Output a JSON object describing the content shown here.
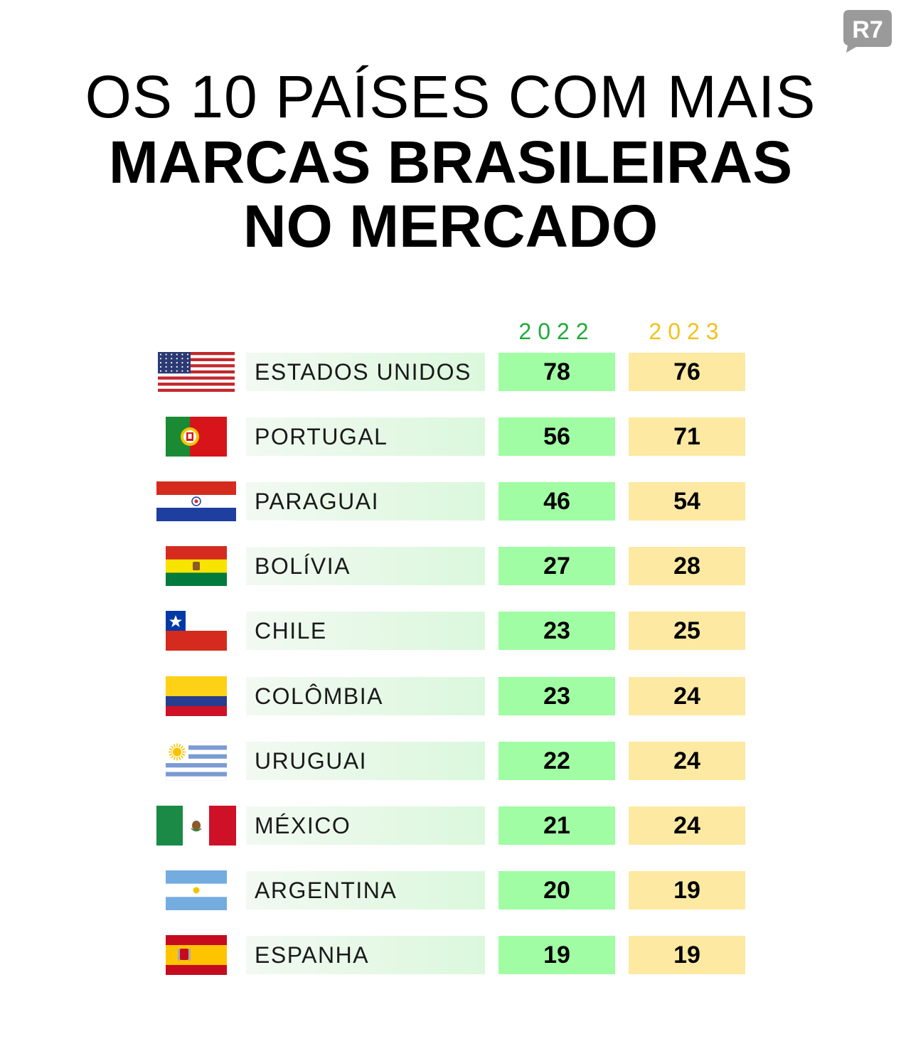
{
  "brand": {
    "logo_text": "R7"
  },
  "title": {
    "line1": "OS 10 PAÍSES COM MAIS",
    "line2": "MARCAS BRASILEIRAS",
    "line3": "NO MERCADO"
  },
  "colors": {
    "year_2022": "#1faa3a",
    "year_2023": "#f2c21a",
    "cell_2022": "#a1fda3",
    "cell_2023": "#fde9a2"
  },
  "chart_data": {
    "type": "table",
    "columns": [
      "2022",
      "2023"
    ],
    "rows": [
      {
        "country": "ESTADOS UNIDOS",
        "flag": "usa-flag",
        "v2022": 78,
        "v2023": 76
      },
      {
        "country": "PORTUGAL",
        "flag": "portugal-flag",
        "v2022": 56,
        "v2023": 71
      },
      {
        "country": "PARAGUAI",
        "flag": "paraguay-flag",
        "v2022": 46,
        "v2023": 54
      },
      {
        "country": "BOLÍVIA",
        "flag": "bolivia-flag",
        "v2022": 27,
        "v2023": 28
      },
      {
        "country": "CHILE",
        "flag": "chile-flag",
        "v2022": 23,
        "v2023": 25
      },
      {
        "country": "COLÔMBIA",
        "flag": "colombia-flag",
        "v2022": 23,
        "v2023": 24
      },
      {
        "country": "URUGUAI",
        "flag": "uruguay-flag",
        "v2022": 22,
        "v2023": 24
      },
      {
        "country": "MÉXICO",
        "flag": "mexico-flag",
        "v2022": 21,
        "v2023": 24
      },
      {
        "country": "ARGENTINA",
        "flag": "argentina-flag",
        "v2022": 20,
        "v2023": 19
      },
      {
        "country": "ESPANHA",
        "flag": "spain-flag",
        "v2022": 19,
        "v2023": 19
      }
    ]
  }
}
